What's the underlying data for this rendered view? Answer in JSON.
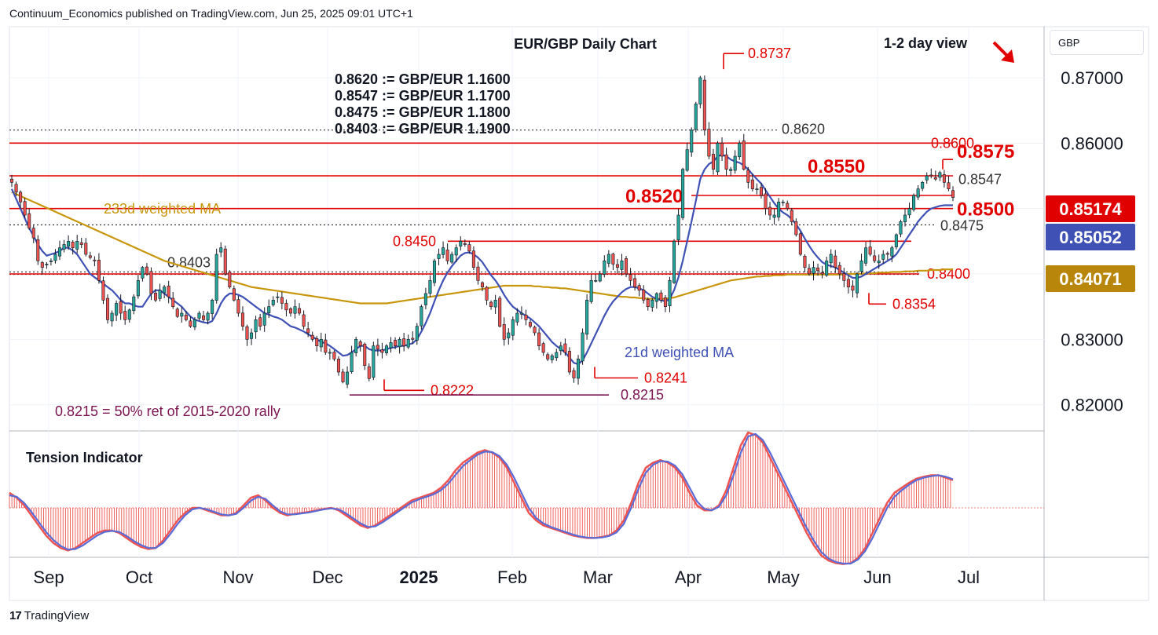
{
  "publisher": "Continuum_Economics published on TradingView.com, Jun 25, 2025 09:01 UTC+1",
  "footer_brand": "TradingView",
  "currency": "GBP",
  "colors": {
    "up": "#26a69a",
    "down": "#ef5350",
    "level_red": "#e00000",
    "ma233": "#c8960c",
    "ma21": "#3f51b5",
    "purple": "#7b1450",
    "dotted": "#333333",
    "badge_price": "#e00000",
    "badge_ma21": "#3f51b5",
    "badge_ma233": "#b8860b"
  },
  "chart_data": {
    "type": "candlestick",
    "title": "EUR/GBP Daily Chart",
    "view": "1-2 day view",
    "view_arrow": "down-right-arrow-icon",
    "x_ticks": [
      "Sep",
      "Oct",
      "Nov",
      "Dec",
      "2025",
      "Feb",
      "Mar",
      "Apr",
      "May",
      "Jun",
      "Jul"
    ],
    "y_ticks": [
      "0.87000",
      "0.86000",
      "0.85000",
      "0.84000",
      "0.83000",
      "0.82000"
    ],
    "ylim": [
      0.816,
      0.8778
    ],
    "price_badges": [
      {
        "label": "0.85174",
        "value": 0.85174,
        "kind": "price"
      },
      {
        "label": "0.85052",
        "value": 0.85052,
        "kind": "ma21"
      },
      {
        "label": "0.84071",
        "value": 0.84071,
        "kind": "ma233"
      }
    ],
    "conversions": [
      "0.8620 := GBP/EUR 1.1600",
      "0.8547 := GBP/EUR 1.1700",
      "0.8475 := GBP/EUR 1.1800",
      "0.8403 := GBP/EUR 1.1900"
    ],
    "levels": [
      {
        "label": "0.8620",
        "value": 0.862,
        "style": "dotted",
        "from": "Sep",
        "label_pos": "right-mid",
        "big": false
      },
      {
        "label": "0.8600",
        "value": 0.86,
        "style": "red",
        "from": "start",
        "label_pos": "right",
        "big": false
      },
      {
        "label": "0.8575",
        "value": 0.8575,
        "style": "red-short",
        "label_pos": "right",
        "big": true
      },
      {
        "label": "0.8550",
        "value": 0.855,
        "style": "red",
        "label_pos": "mid",
        "big": true
      },
      {
        "label": "0.8547",
        "value": 0.8547,
        "style": "dotted",
        "label_pos": "right",
        "big": false
      },
      {
        "label": "0.8520",
        "value": 0.852,
        "style": "red",
        "label_pos": "left-mid",
        "big": true
      },
      {
        "label": "0.8500",
        "value": 0.85,
        "style": "red",
        "label_pos": "right",
        "big": true
      },
      {
        "label": "0.8475",
        "value": 0.8475,
        "style": "dotted",
        "label_pos": "right",
        "big": false
      },
      {
        "label": "0.8450",
        "value": 0.845,
        "style": "red",
        "label_pos": "left-mid",
        "big": false
      },
      {
        "label": "0.8403",
        "value": 0.8403,
        "style": "dotted",
        "label_pos": "left",
        "big": false
      },
      {
        "label": "0.8400",
        "value": 0.84,
        "style": "red",
        "label_pos": "right",
        "big": false
      }
    ],
    "annotations": [
      {
        "label": "0.8737",
        "value": 0.8737,
        "kind": "high"
      },
      {
        "label": "0.8354",
        "value": 0.8354,
        "kind": "low"
      },
      {
        "label": "0.8241",
        "value": 0.8241,
        "kind": "low"
      },
      {
        "label": "0.8222",
        "value": 0.8222,
        "kind": "low"
      },
      {
        "label": "0.8215",
        "value": 0.8215,
        "kind": "purple"
      }
    ],
    "note_0215": "0.8215 = 50% ret of 2015-2020 rally",
    "ma233_label": "233d weighted MA",
    "ma21_label": "21d weighted MA",
    "candles_close": [
      0.854,
      0.8525,
      0.851,
      0.849,
      0.847,
      0.8455,
      0.842,
      0.841,
      0.8415,
      0.842,
      0.843,
      0.844,
      0.8445,
      0.845,
      0.844,
      0.845,
      0.8445,
      0.843,
      0.8425,
      0.842,
      0.839,
      0.836,
      0.833,
      0.834,
      0.8355,
      0.834,
      0.833,
      0.8345,
      0.8365,
      0.839,
      0.841,
      0.84,
      0.837,
      0.836,
      0.8375,
      0.838,
      0.8365,
      0.835,
      0.8335,
      0.834,
      0.833,
      0.832,
      0.833,
      0.834,
      0.833,
      0.834,
      0.836,
      0.843,
      0.844,
      0.84,
      0.838,
      0.836,
      0.834,
      0.832,
      0.83,
      0.831,
      0.833,
      0.832,
      0.834,
      0.835,
      0.836,
      0.8365,
      0.8355,
      0.8345,
      0.834,
      0.835,
      0.834,
      0.832,
      0.831,
      0.83,
      0.829,
      0.83,
      0.828,
      0.828,
      0.827,
      0.825,
      0.8235,
      0.825,
      0.828,
      0.83,
      0.829,
      0.826,
      0.824,
      0.829,
      0.8285,
      0.828,
      0.829,
      0.8295,
      0.829,
      0.83,
      0.829,
      0.83,
      0.83,
      0.832,
      0.835,
      0.837,
      0.839,
      0.842,
      0.843,
      0.844,
      0.842,
      0.843,
      0.844,
      0.845,
      0.8445,
      0.8435,
      0.841,
      0.839,
      0.838,
      0.836,
      0.835,
      0.836,
      0.832,
      0.83,
      0.831,
      0.833,
      0.834,
      0.834,
      0.833,
      0.832,
      0.831,
      0.829,
      0.828,
      0.827,
      0.8275,
      0.828,
      0.829,
      0.828,
      0.825,
      0.8241,
      0.827,
      0.831,
      0.836,
      0.839,
      0.839,
      0.84,
      0.842,
      0.843,
      0.8415,
      0.841,
      0.842,
      0.84,
      0.839,
      0.838,
      0.8375,
      0.836,
      0.835,
      0.836,
      0.837,
      0.836,
      0.835,
      0.839,
      0.845,
      0.849,
      0.856,
      0.859,
      0.862,
      0.866,
      0.87,
      0.862,
      0.858,
      0.856,
      0.86,
      0.858,
      0.856,
      0.856,
      0.858,
      0.86,
      0.856,
      0.854,
      0.853,
      0.853,
      0.852,
      0.85,
      0.849,
      0.849,
      0.851,
      0.851,
      0.85,
      0.848,
      0.846,
      0.843,
      0.841,
      0.84,
      0.841,
      0.8405,
      0.84,
      0.842,
      0.843,
      0.841,
      0.84,
      0.839,
      0.838,
      0.8375,
      0.84,
      0.842,
      0.844,
      0.843,
      0.842,
      0.842,
      0.843,
      0.843,
      0.844,
      0.846,
      0.848,
      0.849,
      0.85,
      0.852,
      0.853,
      0.854,
      0.855,
      0.855,
      0.8545,
      0.8555,
      0.854,
      0.853,
      0.8517
    ],
    "ma21_values": [
      0.853,
      0.8515,
      0.85,
      0.8485,
      0.847,
      0.8458,
      0.8445,
      0.8435,
      0.8428,
      0.843,
      0.8432,
      0.8435,
      0.844,
      0.844,
      0.8436,
      0.843,
      0.842,
      0.841,
      0.84,
      0.8395,
      0.839,
      0.8385,
      0.838,
      0.8375,
      0.8368,
      0.836,
      0.8355,
      0.8355,
      0.8352,
      0.835,
      0.835,
      0.836,
      0.837,
      0.8375,
      0.8375,
      0.837,
      0.8365,
      0.836,
      0.8355,
      0.835,
      0.8342,
      0.8335,
      0.833,
      0.8328,
      0.8326,
      0.8325,
      0.8328,
      0.834,
      0.8355,
      0.8365,
      0.837,
      0.837,
      0.8368,
      0.8365,
      0.836,
      0.8355,
      0.835,
      0.8345,
      0.834,
      0.8338,
      0.8335,
      0.8333,
      0.833,
      0.8325,
      0.832,
      0.8318,
      0.8315,
      0.8312,
      0.8308,
      0.8304,
      0.83,
      0.8296,
      0.8294,
      0.829,
      0.8285,
      0.828,
      0.8275,
      0.8276,
      0.828,
      0.8285,
      0.829,
      0.829,
      0.8285,
      0.8283,
      0.8283,
      0.8283,
      0.8285,
      0.8287,
      0.8288,
      0.829,
      0.829,
      0.8292,
      0.8294,
      0.83,
      0.8312,
      0.8325,
      0.834,
      0.8358,
      0.8375,
      0.839,
      0.8402,
      0.8412,
      0.842,
      0.8428,
      0.8432,
      0.8433,
      0.843,
      0.8425,
      0.8418,
      0.8408,
      0.8398,
      0.839,
      0.838,
      0.8368,
      0.8358,
      0.835,
      0.8345,
      0.834,
      0.8336,
      0.8332,
      0.8326,
      0.832,
      0.8312,
      0.8304,
      0.8296,
      0.829,
      0.8285,
      0.828,
      0.8272,
      0.8264,
      0.8262,
      0.8268,
      0.828,
      0.8294,
      0.8308,
      0.8322,
      0.8336,
      0.8348,
      0.8358,
      0.8365,
      0.8372,
      0.8377,
      0.838,
      0.838,
      0.8378,
      0.8375,
      0.837,
      0.8365,
      0.8362,
      0.836,
      0.8358,
      0.8362,
      0.8375,
      0.8395,
      0.842,
      0.845,
      0.848,
      0.8512,
      0.8545,
      0.856,
      0.8568,
      0.8572,
      0.858,
      0.8582,
      0.858,
      0.8575,
      0.8572,
      0.857,
      0.8566,
      0.856,
      0.8552,
      0.8545,
      0.8538,
      0.8528,
      0.8518,
      0.8508,
      0.85,
      0.8494,
      0.849,
      0.8484,
      0.8476,
      0.8466,
      0.8454,
      0.8443,
      0.8433,
      0.8425,
      0.8418,
      0.8414,
      0.8412,
      0.841,
      0.8406,
      0.8402,
      0.8398,
      0.8394,
      0.8394,
      0.8396,
      0.84,
      0.8404,
      0.8408,
      0.8412,
      0.8416,
      0.842,
      0.8424,
      0.843,
      0.844,
      0.845,
      0.846,
      0.847,
      0.848,
      0.8488,
      0.8495,
      0.85,
      0.8502,
      0.8504,
      0.8505,
      0.8505,
      0.8505
    ],
    "ma233_values": [
      0.8525,
      0.8522,
      0.8519,
      0.8516,
      0.8513,
      0.851,
      0.8507,
      0.8504,
      0.8501,
      0.8498,
      0.8495,
      0.8492,
      0.8489,
      0.8486,
      0.8483,
      0.848,
      0.8477,
      0.8474,
      0.8471,
      0.8468,
      0.8465,
      0.8462,
      0.8459,
      0.8456,
      0.8453,
      0.845,
      0.8447,
      0.8444,
      0.8441,
      0.8438,
      0.8435,
      0.8432,
      0.8429,
      0.8426,
      0.8423,
      0.842,
      0.8418,
      0.8416,
      0.8414,
      0.8412,
      0.841,
      0.8408,
      0.8406,
      0.8404,
      0.8402,
      0.84,
      0.8398,
      0.8396,
      0.8394,
      0.8392,
      0.839,
      0.8388,
      0.8386,
      0.8384,
      0.8382,
      0.838,
      0.8379,
      0.8378,
      0.8377,
      0.8376,
      0.8375,
      0.8374,
      0.8373,
      0.8372,
      0.8371,
      0.837,
      0.8369,
      0.8368,
      0.8367,
      0.8366,
      0.8365,
      0.8364,
      0.8363,
      0.8362,
      0.8361,
      0.836,
      0.8359,
      0.8358,
      0.8357,
      0.8356,
      0.8355,
      0.8355,
      0.8355,
      0.8355,
      0.8355,
      0.8355,
      0.8355,
      0.8356,
      0.8357,
      0.8358,
      0.8359,
      0.836,
      0.8361,
      0.8362,
      0.8363,
      0.8364,
      0.8365,
      0.8366,
      0.8367,
      0.8368,
      0.8369,
      0.837,
      0.8371,
      0.8372,
      0.8373,
      0.8374,
      0.8375,
      0.8376,
      0.8377,
      0.8378,
      0.8379,
      0.838,
      0.8381,
      0.8382,
      0.8382,
      0.8382,
      0.8382,
      0.8382,
      0.8382,
      0.8382,
      0.8381,
      0.8381,
      0.838,
      0.838,
      0.8379,
      0.8379,
      0.8378,
      0.8378,
      0.8377,
      0.8376,
      0.8375,
      0.8374,
      0.8373,
      0.8372,
      0.8371,
      0.837,
      0.8369,
      0.8368,
      0.8367,
      0.8366,
      0.8365,
      0.8365,
      0.8364,
      0.8364,
      0.8363,
      0.8363,
      0.8362,
      0.8362,
      0.8362,
      0.8362,
      0.8362,
      0.8363,
      0.8364,
      0.8366,
      0.8368,
      0.837,
      0.8372,
      0.8374,
      0.8376,
      0.8378,
      0.838,
      0.8382,
      0.8384,
      0.8386,
      0.8388,
      0.839,
      0.8391,
      0.8392,
      0.8393,
      0.8394,
      0.8395,
      0.8396,
      0.8396,
      0.8397,
      0.8397,
      0.8398,
      0.8398,
      0.8398,
      0.8399,
      0.8399,
      0.8399,
      0.8399,
      0.8399,
      0.8399,
      0.8399,
      0.8399,
      0.8399,
      0.8399,
      0.8399,
      0.8399,
      0.8399,
      0.8399,
      0.84,
      0.84,
      0.84,
      0.84,
      0.8401,
      0.8401,
      0.8401,
      0.8402,
      0.8402,
      0.8402,
      0.8403,
      0.8403,
      0.8403,
      0.8404,
      0.8404,
      0.8404,
      0.8405,
      0.8405,
      0.8405,
      0.8406,
      0.8406,
      0.8406,
      0.8407,
      0.8407,
      0.8407
    ],
    "tension_label": "Tension Indicator",
    "tension_values": [
      0.3,
      0.2,
      0.05,
      -0.15,
      -0.35,
      -0.55,
      -0.7,
      -0.8,
      -0.85,
      -0.8,
      -0.7,
      -0.6,
      -0.5,
      -0.45,
      -0.45,
      -0.5,
      -0.6,
      -0.7,
      -0.78,
      -0.82,
      -0.8,
      -0.65,
      -0.45,
      -0.25,
      -0.1,
      0.0,
      0.0,
      -0.05,
      -0.1,
      -0.15,
      -0.15,
      -0.1,
      0.05,
      0.2,
      0.25,
      0.15,
      0.0,
      -0.1,
      -0.15,
      -0.12,
      -0.1,
      -0.08,
      -0.05,
      -0.02,
      0.0,
      -0.05,
      -0.15,
      -0.25,
      -0.35,
      -0.4,
      -0.35,
      -0.25,
      -0.15,
      -0.05,
      0.05,
      0.15,
      0.2,
      0.25,
      0.3,
      0.4,
      0.55,
      0.75,
      0.9,
      1.0,
      1.1,
      1.15,
      1.1,
      1.0,
      0.8,
      0.5,
      0.2,
      -0.1,
      -0.25,
      -0.35,
      -0.4,
      -0.45,
      -0.5,
      -0.55,
      -0.58,
      -0.6,
      -0.6,
      -0.58,
      -0.55,
      -0.45,
      -0.25,
      0.1,
      0.5,
      0.8,
      0.9,
      0.95,
      0.9,
      0.8,
      0.6,
      0.3,
      0.05,
      -0.05,
      -0.05,
      0.05,
      0.35,
      0.8,
      1.25,
      1.5,
      1.45,
      1.3,
      1.0,
      0.7,
      0.4,
      0.1,
      -0.2,
      -0.5,
      -0.75,
      -0.95,
      -1.05,
      -1.1,
      -1.12,
      -1.1,
      -1.0,
      -0.8,
      -0.5,
      -0.2,
      0.1,
      0.3,
      0.4,
      0.5,
      0.58,
      0.62,
      0.65,
      0.65,
      0.6,
      0.55
    ],
    "tension_signal": [
      0.25,
      0.22,
      0.1,
      -0.08,
      -0.28,
      -0.48,
      -0.64,
      -0.76,
      -0.83,
      -0.82,
      -0.75,
      -0.65,
      -0.55,
      -0.48,
      -0.46,
      -0.48,
      -0.56,
      -0.66,
      -0.74,
      -0.8,
      -0.8,
      -0.7,
      -0.52,
      -0.32,
      -0.15,
      -0.03,
      0.0,
      -0.03,
      -0.08,
      -0.13,
      -0.15,
      -0.12,
      0.0,
      0.14,
      0.22,
      0.18,
      0.05,
      -0.07,
      -0.13,
      -0.13,
      -0.11,
      -0.09,
      -0.06,
      -0.03,
      -0.01,
      -0.03,
      -0.11,
      -0.21,
      -0.31,
      -0.38,
      -0.37,
      -0.29,
      -0.19,
      -0.09,
      0.01,
      0.11,
      0.17,
      0.22,
      0.27,
      0.35,
      0.48,
      0.66,
      0.83,
      0.95,
      1.06,
      1.12,
      1.11,
      1.03,
      0.86,
      0.6,
      0.3,
      0.0,
      -0.2,
      -0.31,
      -0.38,
      -0.43,
      -0.48,
      -0.53,
      -0.57,
      -0.59,
      -0.6,
      -0.59,
      -0.56,
      -0.49,
      -0.32,
      0.0,
      0.38,
      0.7,
      0.86,
      0.93,
      0.92,
      0.84,
      0.67,
      0.4,
      0.13,
      -0.02,
      -0.05,
      0.02,
      0.25,
      0.65,
      1.1,
      1.42,
      1.47,
      1.35,
      1.1,
      0.8,
      0.5,
      0.2,
      -0.1,
      -0.4,
      -0.66,
      -0.88,
      -1.01,
      -1.08,
      -1.11,
      -1.11,
      -1.03,
      -0.86,
      -0.6,
      -0.3,
      0.0,
      0.22,
      0.35,
      0.46,
      0.55,
      0.6,
      0.63,
      0.65,
      0.62,
      0.57
    ]
  }
}
